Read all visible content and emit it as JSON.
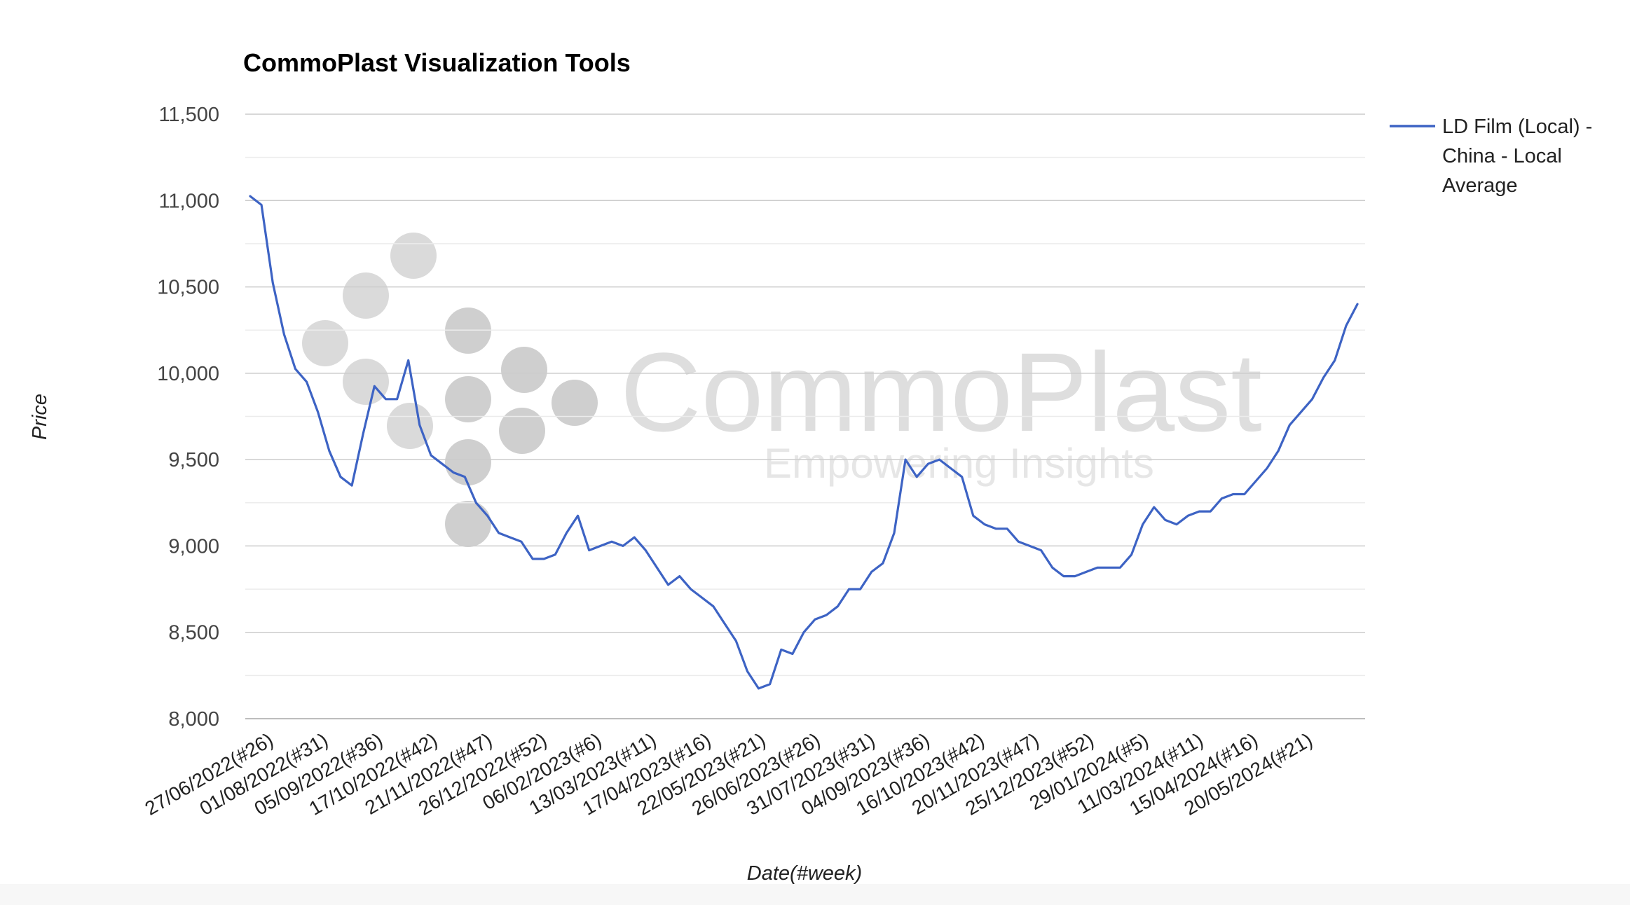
{
  "chart_data": {
    "type": "line",
    "title": "CommoPlast Visualization Tools",
    "xlabel": "Date(#week)",
    "ylabel": "Price",
    "ylim": [
      8000,
      11500
    ],
    "y_ticks": [
      8000,
      8500,
      9000,
      9500,
      10000,
      10500,
      11000,
      11500
    ],
    "y_tick_labels": [
      "8,000",
      "8,500",
      "9,000",
      "9,500",
      "10,000",
      "10,500",
      "11,000",
      "11,500"
    ],
    "grid": true,
    "minor_grid": true,
    "legend_position": "right",
    "x_tick_labels": [
      "27/06/2022(#26)",
      "01/08/2022(#31)",
      "05/09/2022(#36)",
      "17/10/2022(#42)",
      "21/11/2022(#47)",
      "26/12/2022(#52)",
      "06/02/2023(#6)",
      "13/03/2023(#11)",
      "17/04/2023(#16)",
      "22/05/2023(#21)",
      "26/06/2023(#26)",
      "31/07/2023(#31)",
      "04/09/2023(#36)",
      "16/10/2023(#42)",
      "20/11/2023(#47)",
      "25/12/2023(#52)",
      "29/01/2024(#5)",
      "11/03/2024(#11)",
      "15/04/2024(#16)",
      "20/05/2024(#21)"
    ],
    "series": [
      {
        "name": "LD Film (Local) - China - Local Average",
        "color": "#3d63c4",
        "values": [
          11025,
          10975,
          10525,
          10225,
          10025,
          9950,
          9775,
          9550,
          9400,
          9350,
          9650,
          9925,
          9850,
          9850,
          10075,
          9700,
          9525,
          9475,
          9425,
          9400,
          9250,
          9175,
          9075,
          9050,
          9025,
          8925,
          8925,
          8950,
          9075,
          9175,
          8975,
          9000,
          9025,
          9000,
          9050,
          8975,
          8875,
          8775,
          8825,
          8750,
          8700,
          8650,
          8550,
          8450,
          8275,
          8175,
          8200,
          8400,
          8375,
          8500,
          8575,
          8600,
          8650,
          8750,
          8750,
          8850,
          8900,
          9075,
          9500,
          9400,
          9475,
          9500,
          9450,
          9400,
          9175,
          9125,
          9100,
          9100,
          9025,
          9000,
          8975,
          8875,
          8825,
          8825,
          8850,
          8875,
          8875,
          8875,
          8950,
          9125,
          9225,
          9150,
          9125,
          9175,
          9200,
          9200,
          9275,
          9300,
          9300,
          9375,
          9450,
          9550,
          9700,
          9775,
          9850,
          9975,
          10075,
          10275,
          10400
        ]
      }
    ]
  },
  "legend": {
    "lines": [
      "LD Film (Local) -",
      "China - Local",
      "Average"
    ]
  },
  "watermark": {
    "brand": "CommoPlast",
    "tagline": "Empowering Insights"
  }
}
